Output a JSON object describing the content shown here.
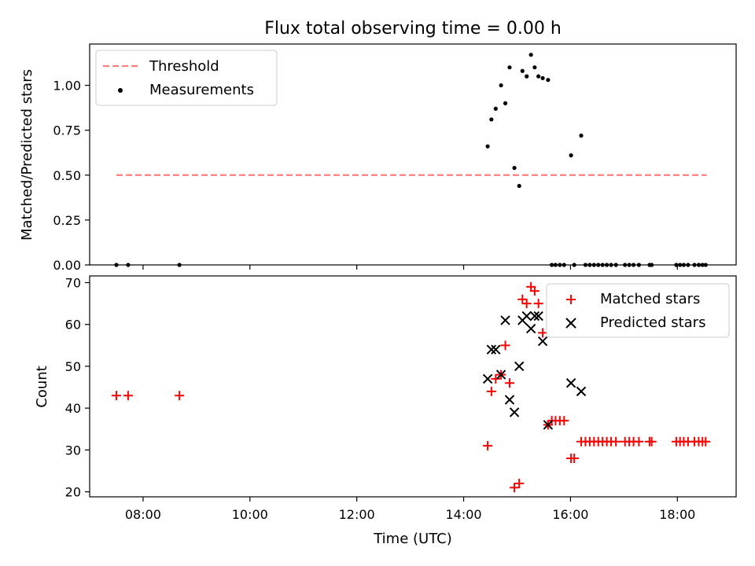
{
  "title": "Flux total observing time = 0.00 h",
  "colors": {
    "threshold": "#ff0000",
    "measurements": "#000000",
    "matched": "#ff0000",
    "predicted": "#000000"
  },
  "chart_data": [
    {
      "type": "scatter",
      "ylabel": "Matched/Predicted stars",
      "xlim": [
        7.0,
        19.1
      ],
      "ylim": [
        0.0,
        1.23
      ],
      "y_ticks": [
        "0.00",
        "0.25",
        "0.50",
        "0.75",
        "1.00"
      ],
      "legend_position": "upper-left",
      "threshold": {
        "name": "Threshold",
        "y": 0.5,
        "x_range": [
          7.5,
          18.55
        ]
      },
      "series": [
        {
          "name": "Measurements",
          "marker": "dot",
          "points": [
            [
              7.5,
              0.0
            ],
            [
              7.72,
              0.0
            ],
            [
              8.68,
              0.0
            ],
            [
              14.45,
              0.66
            ],
            [
              14.52,
              0.81
            ],
            [
              14.6,
              0.87
            ],
            [
              14.7,
              1.0
            ],
            [
              14.78,
              0.9
            ],
            [
              14.86,
              1.1
            ],
            [
              14.95,
              0.54
            ],
            [
              15.04,
              0.44
            ],
            [
              15.1,
              1.08
            ],
            [
              15.18,
              1.05
            ],
            [
              15.26,
              1.17
            ],
            [
              15.33,
              1.1
            ],
            [
              15.4,
              1.05
            ],
            [
              15.48,
              1.04
            ],
            [
              15.58,
              1.03
            ],
            [
              15.65,
              0.0
            ],
            [
              15.72,
              0.0
            ],
            [
              15.8,
              0.0
            ],
            [
              15.88,
              0.0
            ],
            [
              16.01,
              0.61
            ],
            [
              16.07,
              0.0
            ],
            [
              16.2,
              0.72
            ],
            [
              16.28,
              0.0
            ],
            [
              16.36,
              0.0
            ],
            [
              16.44,
              0.0
            ],
            [
              16.52,
              0.0
            ],
            [
              16.6,
              0.0
            ],
            [
              16.68,
              0.0
            ],
            [
              16.76,
              0.0
            ],
            [
              16.85,
              0.0
            ],
            [
              17.02,
              0.0
            ],
            [
              17.1,
              0.0
            ],
            [
              17.18,
              0.0
            ],
            [
              17.28,
              0.0
            ],
            [
              17.48,
              0.0
            ],
            [
              17.52,
              0.0
            ],
            [
              17.98,
              0.0
            ],
            [
              18.05,
              0.0
            ],
            [
              18.12,
              0.0
            ],
            [
              18.2,
              0.0
            ],
            [
              18.32,
              0.0
            ],
            [
              18.4,
              0.0
            ],
            [
              18.47,
              0.0
            ],
            [
              18.53,
              0.0
            ]
          ]
        }
      ]
    },
    {
      "type": "scatter",
      "xlabel": "Time (UTC)",
      "ylabel": "Count",
      "xlim": [
        7.0,
        19.1
      ],
      "ylim": [
        18.8,
        71.6
      ],
      "x_ticks": [
        {
          "value": 8,
          "label": "08:00"
        },
        {
          "value": 10,
          "label": "10:00"
        },
        {
          "value": 12,
          "label": "12:00"
        },
        {
          "value": 14,
          "label": "14:00"
        },
        {
          "value": 16,
          "label": "16:00"
        },
        {
          "value": 18,
          "label": "18:00"
        }
      ],
      "y_ticks": [
        "20",
        "30",
        "40",
        "50",
        "60",
        "70"
      ],
      "legend_position": "upper-right",
      "series": [
        {
          "name": "Matched stars",
          "marker": "plus",
          "points": [
            [
              7.5,
              43
            ],
            [
              7.72,
              43
            ],
            [
              8.68,
              43
            ],
            [
              14.45,
              31
            ],
            [
              14.52,
              44
            ],
            [
              14.6,
              47
            ],
            [
              14.7,
              48
            ],
            [
              14.78,
              55
            ],
            [
              14.86,
              46
            ],
            [
              14.95,
              21
            ],
            [
              15.04,
              22
            ],
            [
              15.1,
              66
            ],
            [
              15.18,
              65
            ],
            [
              15.26,
              69
            ],
            [
              15.33,
              68
            ],
            [
              15.4,
              65
            ],
            [
              15.48,
              58
            ],
            [
              15.58,
              36
            ],
            [
              15.65,
              37
            ],
            [
              15.72,
              37
            ],
            [
              15.8,
              37
            ],
            [
              15.88,
              37
            ],
            [
              16.01,
              28
            ],
            [
              16.07,
              28
            ],
            [
              16.2,
              32
            ],
            [
              16.28,
              32
            ],
            [
              16.36,
              32
            ],
            [
              16.44,
              32
            ],
            [
              16.52,
              32
            ],
            [
              16.6,
              32
            ],
            [
              16.68,
              32
            ],
            [
              16.76,
              32
            ],
            [
              16.85,
              32
            ],
            [
              17.02,
              32
            ],
            [
              17.1,
              32
            ],
            [
              17.18,
              32
            ],
            [
              17.28,
              32
            ],
            [
              17.48,
              32
            ],
            [
              17.52,
              32
            ],
            [
              17.98,
              32
            ],
            [
              18.05,
              32
            ],
            [
              18.12,
              32
            ],
            [
              18.2,
              32
            ],
            [
              18.32,
              32
            ],
            [
              18.4,
              32
            ],
            [
              18.47,
              32
            ],
            [
              18.53,
              32
            ]
          ]
        },
        {
          "name": "Predicted stars",
          "marker": "x",
          "points": [
            [
              14.45,
              47
            ],
            [
              14.52,
              54
            ],
            [
              14.6,
              54
            ],
            [
              14.7,
              48
            ],
            [
              14.78,
              61
            ],
            [
              14.86,
              42
            ],
            [
              14.95,
              39
            ],
            [
              15.04,
              50
            ],
            [
              15.1,
              61
            ],
            [
              15.18,
              62
            ],
            [
              15.26,
              59
            ],
            [
              15.33,
              62
            ],
            [
              15.4,
              62
            ],
            [
              15.48,
              56
            ],
            [
              15.58,
              36
            ],
            [
              16.01,
              46
            ],
            [
              16.2,
              44
            ]
          ]
        }
      ]
    }
  ]
}
